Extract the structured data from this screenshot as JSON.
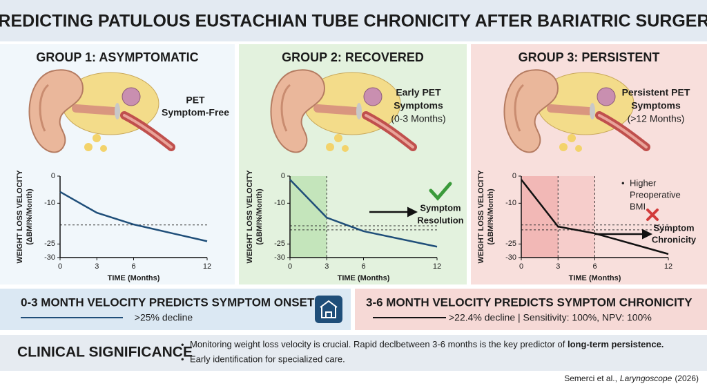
{
  "title": "PREDICTING PATULOUS EUSTACHIAN TUBE CHRONICITY AFTER BARIATRIC SURGERY",
  "panels": [
    {
      "heading": "GROUP 1: ASYMPTOMATIC",
      "ear_label": [
        "PET",
        "Symptom-Free"
      ]
    },
    {
      "heading": "GROUP 2: RECOVERED",
      "ear_label": [
        "Early PET",
        "Symptoms",
        "(0-3 Months)"
      ],
      "chart_note": [
        "Symptom",
        "Resolution"
      ]
    },
    {
      "heading": "GROUP 3: PERSISTENT",
      "ear_label": [
        "Persistent PET",
        "Symptoms",
        "(>12 Months)"
      ],
      "bullet": [
        "Higher",
        "Preoperative",
        "BMI"
      ],
      "chart_note": [
        "Symptom",
        "Chronicity"
      ]
    }
  ],
  "chart_data": [
    {
      "type": "line",
      "ylabel": [
        "WEIGHT LOSS VELOCITY",
        "(ΔBMI%/Month)"
      ],
      "xlabel": "TIME (Months)",
      "x": [
        0,
        3,
        6,
        12
      ],
      "xlim": [
        0,
        12
      ],
      "xticks": [
        0,
        3,
        6,
        12
      ],
      "ylim": [
        -30,
        0
      ],
      "yticks": [
        0,
        -10,
        -25,
        -30
      ],
      "series": [
        {
          "color": "#1f4e79",
          "values": [
            -5.8,
            -13.5,
            -17.8,
            -24
          ]
        }
      ],
      "hlines": [
        -18
      ]
    },
    {
      "type": "line",
      "ylabel": [
        "WEIGHT LOSS VELOCITY",
        "(ΔBMI%/Month)"
      ],
      "xlabel": "TIME (Months)",
      "x": [
        0,
        3,
        6,
        12
      ],
      "xlim": [
        0,
        12
      ],
      "xticks": [
        0,
        3,
        6,
        12
      ],
      "ylim": [
        -30,
        0
      ],
      "yticks": [
        0,
        -10,
        -25,
        -30
      ],
      "series": [
        {
          "color": "#1f4e79",
          "values": [
            -1.3,
            -15.3,
            -20.3,
            -26
          ]
        }
      ],
      "shades": [
        {
          "range": [
            0,
            3
          ],
          "color": "#c4e5bb"
        }
      ],
      "vlines": [
        3
      ],
      "hlines": [
        -18.3,
        -19.8
      ]
    },
    {
      "type": "line",
      "ylabel": [
        "WEIGHT LOSS VELOCITY",
        "(ΔBMI%/Month)"
      ],
      "xlabel": "TIME (Months)",
      "x": [
        0,
        3,
        6,
        12
      ],
      "xlim": [
        0,
        12
      ],
      "xticks": [
        0,
        3,
        6,
        12
      ],
      "ylim": [
        -30,
        0
      ],
      "yticks": [
        0,
        -10,
        -25,
        -30
      ],
      "series": [
        {
          "color": "#111111",
          "values": [
            -1.3,
            -18.6,
            -21.1,
            -28.7
          ]
        }
      ],
      "shades": [
        {
          "range": [
            0,
            3
          ],
          "color": "#f2b8b6"
        },
        {
          "range": [
            3,
            6
          ],
          "color": "#f6cdcb"
        }
      ],
      "vlines": [
        3,
        6
      ],
      "hlines": [
        -18,
        -19.8
      ]
    }
  ],
  "banners": {
    "left": {
      "headline": "0-3 MONTH VELOCITY PREDICTS SYMPTOM ONSET",
      "detail": ">25% decline"
    },
    "right": {
      "headline": "3-6 MONTH VELOCITY PREDICTS SYMPTOM CHRONICITY",
      "detail": ">22.4% decline | Sensitivity: 100%, NPV: 100%"
    }
  },
  "significance": {
    "heading": "CLINICAL SIGNIFICANCE",
    "bullets": [
      {
        "text": "Monitoring weight loss velocity is crucial. Rapid declbetween 3-6 months is the key predictor of ",
        "emphasis": "long-term persistence."
      },
      {
        "text": "Early identification for specialized care."
      }
    ]
  },
  "citation": {
    "authors": "Semerci et al.,",
    "journal": "Laryngoscope",
    "year": "(2026)"
  }
}
